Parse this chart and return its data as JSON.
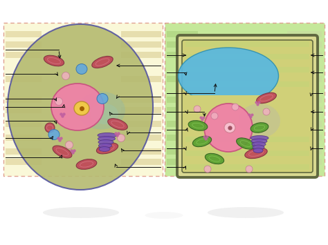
{
  "bg_color": "#ffffff",
  "left_panel_bg": "#faf8d8",
  "right_panel_bg": "#c5e89a",
  "left_panel_border": "#e0a090",
  "right_panel_border": "#e0a090",
  "animal_cell_fill": "#b5ba70",
  "animal_cell_border": "#5555a0",
  "plant_cell_wall_fill": "#d8d890",
  "plant_cell_wall_border": "#606840",
  "plant_cell_inner_fill": "#d0d078",
  "nucleus_fill": "#f080a8",
  "nucleus_border": "#c85080",
  "nucleolus_fill": "#f0c848",
  "nucleolus_border": "#c09030",
  "plant_nucleolus_fill": "#f8c0d0",
  "vacuole_fill": "#58b8e0",
  "vacuole_border": "#3090b0",
  "mitochondria_fill": "#c04858",
  "mitochondria_border": "#803040",
  "mitochondria_inner": "#d87888",
  "chloroplast_fill": "#58a030",
  "chloroplast_border": "#306020",
  "golgi_fill": "#7850b8",
  "golgi_border": "#503080",
  "vesicle_fill": "#f0b0c0",
  "vesicle_border": "#c07090",
  "lysosome_fill": "#60a8e0",
  "lysosome_border": "#3070b0",
  "ribosome_fill": "#c060a0",
  "teal_blur": "#80b8b8",
  "grey_blur": "#b0b0b8",
  "stripe_left_l": "#d8c888",
  "stripe_left_r": "#c8b870",
  "stripe_right_l": "#a0c870",
  "stripe_right_r": "#c8d8a0",
  "line_color": "#101010",
  "shadow_color": "#b0b0b0"
}
